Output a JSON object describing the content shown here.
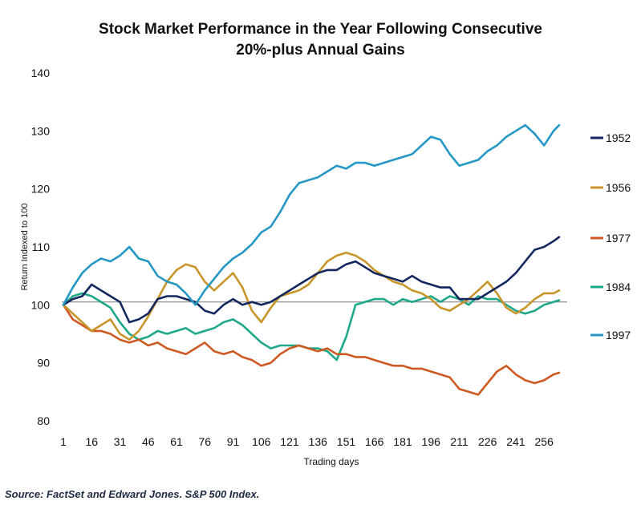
{
  "chart_data": {
    "type": "line",
    "title_lines": [
      "Stock Market Performance in the Year Following Consecutive",
      "20%-plus Annual Gains"
    ],
    "xlabel": "Trading days",
    "ylabel": "Return Indexed to 100",
    "xlim": [
      1,
      264
    ],
    "ylim": [
      80,
      140
    ],
    "xticks": [
      1,
      16,
      31,
      46,
      61,
      76,
      91,
      106,
      121,
      136,
      151,
      166,
      181,
      196,
      211,
      226,
      241,
      256
    ],
    "yticks": [
      80,
      90,
      100,
      110,
      120,
      130,
      140
    ],
    "reference_line": 100.5,
    "legend_position": "right",
    "series": [
      {
        "name": "1952",
        "color": "#14285f",
        "points": [
          [
            1,
            100
          ],
          [
            6,
            101
          ],
          [
            11,
            101.5
          ],
          [
            16,
            103.5
          ],
          [
            21,
            102.5
          ],
          [
            26,
            101.5
          ],
          [
            31,
            100.5
          ],
          [
            36,
            97
          ],
          [
            41,
            97.5
          ],
          [
            46,
            98.5
          ],
          [
            51,
            101
          ],
          [
            56,
            101.5
          ],
          [
            61,
            101.5
          ],
          [
            66,
            101
          ],
          [
            71,
            100.5
          ],
          [
            76,
            99
          ],
          [
            81,
            98.5
          ],
          [
            86,
            100
          ],
          [
            91,
            101
          ],
          [
            96,
            100
          ],
          [
            101,
            100.5
          ],
          [
            106,
            100
          ],
          [
            111,
            100.5
          ],
          [
            116,
            101.5
          ],
          [
            121,
            102.5
          ],
          [
            126,
            103.5
          ],
          [
            131,
            104.5
          ],
          [
            136,
            105.5
          ],
          [
            141,
            106
          ],
          [
            146,
            106
          ],
          [
            151,
            107
          ],
          [
            156,
            107.5
          ],
          [
            161,
            106.5
          ],
          [
            166,
            105.5
          ],
          [
            171,
            105
          ],
          [
            176,
            104.5
          ],
          [
            181,
            104
          ],
          [
            186,
            105
          ],
          [
            191,
            104
          ],
          [
            196,
            103.5
          ],
          [
            201,
            103
          ],
          [
            206,
            103
          ],
          [
            211,
            101
          ],
          [
            216,
            101
          ],
          [
            221,
            101
          ],
          [
            226,
            102
          ],
          [
            231,
            103
          ],
          [
            236,
            104
          ],
          [
            241,
            105.5
          ],
          [
            246,
            107.5
          ],
          [
            251,
            109.5
          ],
          [
            256,
            110
          ],
          [
            261,
            111
          ],
          [
            264,
            111.7
          ]
        ]
      },
      {
        "name": "1956",
        "color": "#c8952b",
        "points": [
          [
            1,
            100
          ],
          [
            6,
            98.5
          ],
          [
            11,
            97
          ],
          [
            16,
            95.5
          ],
          [
            21,
            96.5
          ],
          [
            26,
            97.5
          ],
          [
            31,
            95
          ],
          [
            36,
            94
          ],
          [
            41,
            95.5
          ],
          [
            46,
            98
          ],
          [
            51,
            101
          ],
          [
            56,
            104
          ],
          [
            61,
            106
          ],
          [
            66,
            107
          ],
          [
            71,
            106.5
          ],
          [
            76,
            104
          ],
          [
            81,
            102.5
          ],
          [
            86,
            104
          ],
          [
            91,
            105.5
          ],
          [
            96,
            103
          ],
          [
            101,
            99
          ],
          [
            106,
            97
          ],
          [
            111,
            99.5
          ],
          [
            116,
            101.5
          ],
          [
            121,
            102
          ],
          [
            126,
            102.5
          ],
          [
            131,
            103.5
          ],
          [
            136,
            105.5
          ],
          [
            141,
            107.5
          ],
          [
            146,
            108.5
          ],
          [
            151,
            109
          ],
          [
            156,
            108.5
          ],
          [
            161,
            107.5
          ],
          [
            166,
            106
          ],
          [
            171,
            105
          ],
          [
            176,
            104
          ],
          [
            181,
            103.5
          ],
          [
            186,
            102.5
          ],
          [
            191,
            102
          ],
          [
            196,
            101
          ],
          [
            201,
            99.5
          ],
          [
            206,
            99
          ],
          [
            211,
            100
          ],
          [
            216,
            101
          ],
          [
            221,
            102.5
          ],
          [
            226,
            104
          ],
          [
            231,
            102
          ],
          [
            236,
            99.5
          ],
          [
            241,
            98.5
          ],
          [
            246,
            99.5
          ],
          [
            251,
            101
          ],
          [
            256,
            102
          ],
          [
            261,
            102
          ],
          [
            264,
            102.5
          ]
        ]
      },
      {
        "name": "1977",
        "color": "#cc5a22",
        "points": [
          [
            1,
            100
          ],
          [
            6,
            97.5
          ],
          [
            11,
            96.5
          ],
          [
            16,
            95.5
          ],
          [
            21,
            95.5
          ],
          [
            26,
            95
          ],
          [
            31,
            94
          ],
          [
            36,
            93.5
          ],
          [
            41,
            94
          ],
          [
            46,
            93
          ],
          [
            51,
            93.5
          ],
          [
            56,
            92.5
          ],
          [
            61,
            92
          ],
          [
            66,
            91.5
          ],
          [
            71,
            92.5
          ],
          [
            76,
            93.5
          ],
          [
            81,
            92
          ],
          [
            86,
            91.5
          ],
          [
            91,
            92
          ],
          [
            96,
            91
          ],
          [
            101,
            90.5
          ],
          [
            106,
            89.5
          ],
          [
            111,
            90
          ],
          [
            116,
            91.5
          ],
          [
            121,
            92.5
          ],
          [
            126,
            93
          ],
          [
            131,
            92.5
          ],
          [
            136,
            92
          ],
          [
            141,
            92.5
          ],
          [
            146,
            91.5
          ],
          [
            151,
            91.5
          ],
          [
            156,
            91
          ],
          [
            161,
            91
          ],
          [
            166,
            90.5
          ],
          [
            171,
            90
          ],
          [
            176,
            89.5
          ],
          [
            181,
            89.5
          ],
          [
            186,
            89
          ],
          [
            191,
            89
          ],
          [
            196,
            88.5
          ],
          [
            201,
            88
          ],
          [
            206,
            87.5
          ],
          [
            211,
            85.5
          ],
          [
            216,
            85
          ],
          [
            221,
            84.5
          ],
          [
            226,
            86.5
          ],
          [
            231,
            88.5
          ],
          [
            236,
            89.5
          ],
          [
            241,
            88
          ],
          [
            246,
            87
          ],
          [
            251,
            86.5
          ],
          [
            256,
            87
          ],
          [
            261,
            88
          ],
          [
            264,
            88.3
          ]
        ]
      },
      {
        "name": "1984",
        "color": "#1fa88a",
        "points": [
          [
            1,
            100
          ],
          [
            6,
            101.5
          ],
          [
            11,
            102
          ],
          [
            16,
            101.5
          ],
          [
            21,
            100.5
          ],
          [
            26,
            99.5
          ],
          [
            31,
            97
          ],
          [
            36,
            95
          ],
          [
            41,
            94
          ],
          [
            46,
            94.5
          ],
          [
            51,
            95.5
          ],
          [
            56,
            95
          ],
          [
            61,
            95.5
          ],
          [
            66,
            96
          ],
          [
            71,
            95
          ],
          [
            76,
            95.5
          ],
          [
            81,
            96
          ],
          [
            86,
            97
          ],
          [
            91,
            97.5
          ],
          [
            96,
            96.5
          ],
          [
            101,
            95
          ],
          [
            106,
            93.5
          ],
          [
            111,
            92.5
          ],
          [
            116,
            93
          ],
          [
            121,
            93
          ],
          [
            126,
            93
          ],
          [
            131,
            92.5
          ],
          [
            136,
            92.5
          ],
          [
            141,
            92
          ],
          [
            146,
            90.5
          ],
          [
            151,
            94.5
          ],
          [
            156,
            100
          ],
          [
            161,
            100.5
          ],
          [
            166,
            101
          ],
          [
            171,
            101
          ],
          [
            176,
            100
          ],
          [
            181,
            101
          ],
          [
            186,
            100.5
          ],
          [
            191,
            101
          ],
          [
            196,
            101.5
          ],
          [
            201,
            100.5
          ],
          [
            206,
            101.5
          ],
          [
            211,
            101
          ],
          [
            216,
            100
          ],
          [
            221,
            101.5
          ],
          [
            226,
            101
          ],
          [
            231,
            101
          ],
          [
            236,
            100
          ],
          [
            241,
            99
          ],
          [
            246,
            98.5
          ],
          [
            251,
            99
          ],
          [
            256,
            100
          ],
          [
            261,
            100.5
          ],
          [
            264,
            100.8
          ]
        ]
      },
      {
        "name": "1997",
        "color": "#2597c4",
        "points": [
          [
            1,
            100
          ],
          [
            6,
            103
          ],
          [
            11,
            105.5
          ],
          [
            16,
            107
          ],
          [
            21,
            108
          ],
          [
            26,
            107.5
          ],
          [
            31,
            108.5
          ],
          [
            36,
            110
          ],
          [
            41,
            108
          ],
          [
            46,
            107.5
          ],
          [
            51,
            105
          ],
          [
            56,
            104
          ],
          [
            61,
            103.5
          ],
          [
            66,
            102
          ],
          [
            71,
            100
          ],
          [
            76,
            102.5
          ],
          [
            81,
            104.5
          ],
          [
            86,
            106.5
          ],
          [
            91,
            108
          ],
          [
            96,
            109
          ],
          [
            101,
            110.5
          ],
          [
            106,
            112.5
          ],
          [
            111,
            113.5
          ],
          [
            116,
            116
          ],
          [
            121,
            119
          ],
          [
            126,
            121
          ],
          [
            131,
            121.5
          ],
          [
            136,
            122
          ],
          [
            141,
            123
          ],
          [
            146,
            124
          ],
          [
            151,
            123.5
          ],
          [
            156,
            124.5
          ],
          [
            161,
            124.5
          ],
          [
            166,
            124
          ],
          [
            171,
            124.5
          ],
          [
            176,
            125
          ],
          [
            181,
            125.5
          ],
          [
            186,
            126
          ],
          [
            191,
            127.5
          ],
          [
            196,
            129
          ],
          [
            201,
            128.5
          ],
          [
            206,
            126
          ],
          [
            211,
            124
          ],
          [
            216,
            124.5
          ],
          [
            221,
            125
          ],
          [
            226,
            126.5
          ],
          [
            231,
            127.5
          ],
          [
            236,
            129
          ],
          [
            241,
            130
          ],
          [
            246,
            131
          ],
          [
            251,
            129.5
          ],
          [
            256,
            127.5
          ],
          [
            261,
            130
          ],
          [
            264,
            131
          ]
        ]
      }
    ],
    "source": "Source: FactSet and Edward Jones. S&P 500 Index."
  }
}
